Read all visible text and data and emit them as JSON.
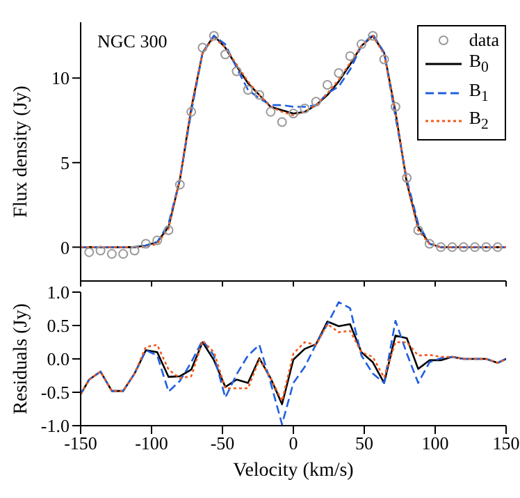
{
  "chart_data": [
    {
      "type": "line",
      "ylabel": "Flux density (Jy)",
      "annotations": [
        "NGC 300"
      ],
      "xlim": [
        -150,
        150
      ],
      "xticks": [
        -150,
        -100,
        -50,
        0,
        50,
        100,
        150
      ],
      "ylim": [
        -2,
        13.3
      ],
      "yticks": [
        0,
        5,
        10
      ],
      "tick_labels": "y",
      "legend": "top right",
      "grid": false,
      "series": [
        {
          "name": "data",
          "type": "scatter",
          "marker": "circle",
          "color": "#999999",
          "x": [
            -144,
            -136,
            -128,
            -120,
            -112,
            -104,
            -96,
            -88,
            -80,
            -72,
            -64,
            -56,
            -48,
            -40,
            -32,
            -24,
            -16,
            -8,
            0,
            8,
            16,
            24,
            32,
            40,
            48,
            56,
            64,
            72,
            80,
            88,
            96,
            104,
            112,
            120,
            128,
            136,
            144
          ],
          "values": [
            -0.3,
            -0.2,
            -0.4,
            -0.4,
            -0.2,
            0.2,
            0.4,
            1.0,
            3.7,
            8.0,
            11.8,
            12.5,
            11.4,
            10.4,
            9.3,
            9.0,
            8.0,
            7.4,
            7.9,
            8.2,
            8.6,
            9.6,
            10.3,
            11.3,
            12.0,
            12.5,
            11.1,
            8.3,
            4.1,
            1.0,
            0.2,
            0.0,
            0.0,
            0.0,
            0.0,
            0.0,
            0.0
          ]
        },
        {
          "name": "B$_{0}$",
          "type": "line",
          "marker": "none",
          "line_style": "solid",
          "color": "#000000",
          "x": [
            -150,
            -144,
            -136,
            -128,
            -120,
            -112,
            -104,
            -96,
            -88,
            -80,
            -72,
            -64,
            -56,
            -48,
            -40,
            -32,
            -24,
            -16,
            -8,
            0,
            8,
            16,
            24,
            32,
            40,
            48,
            56,
            64,
            72,
            80,
            88,
            96,
            104,
            112,
            120,
            128,
            136,
            144,
            150
          ],
          "values": [
            0,
            0,
            0,
            0,
            0,
            0,
            0.1,
            0.3,
            1.2,
            4.0,
            8.2,
            11.5,
            12.5,
            11.8,
            10.7,
            9.7,
            9.0,
            8.3,
            8.1,
            7.9,
            8.0,
            8.4,
            9.0,
            9.8,
            10.8,
            11.9,
            12.5,
            11.5,
            8.0,
            3.8,
            1.2,
            0.2,
            0,
            0,
            0,
            0,
            0,
            0,
            0
          ]
        },
        {
          "name": "B$_{1}$",
          "type": "line",
          "marker": "none",
          "line_style": "dashed",
          "color": "#1f5fe0",
          "x": [
            -150,
            -144,
            -136,
            -128,
            -120,
            -112,
            -104,
            -96,
            -88,
            -80,
            -72,
            -64,
            -56,
            -48,
            -40,
            -32,
            -24,
            -16,
            -8,
            0,
            8,
            16,
            24,
            32,
            40,
            48,
            56,
            64,
            72,
            80,
            88,
            96,
            104,
            112,
            120,
            128,
            136,
            144,
            150
          ],
          "values": [
            0,
            0,
            0,
            0,
            0,
            0,
            0.1,
            0.3,
            1.4,
            4.0,
            8.0,
            11.5,
            12.5,
            12.0,
            10.6,
            9.3,
            8.8,
            8.4,
            8.4,
            8.3,
            8.3,
            8.4,
            9.1,
            9.5,
            10.5,
            11.9,
            12.6,
            11.5,
            7.7,
            4.0,
            1.4,
            0.2,
            0,
            0,
            0,
            0,
            0,
            0,
            0
          ]
        },
        {
          "name": "B$_{2}$",
          "type": "line",
          "marker": "none",
          "line_style": "dotted",
          "color": "#f05a1e",
          "x": [
            -150,
            -144,
            -136,
            -128,
            -120,
            -112,
            -104,
            -96,
            -88,
            -80,
            -72,
            -64,
            -56,
            -48,
            -40,
            -32,
            -24,
            -16,
            -8,
            0,
            8,
            16,
            24,
            32,
            40,
            48,
            56,
            64,
            72,
            80,
            88,
            96,
            104,
            112,
            120,
            128,
            136,
            144,
            150
          ],
          "values": [
            0,
            0,
            0,
            0,
            0,
            0,
            0,
            0.2,
            1.1,
            4.0,
            8.3,
            11.5,
            12.4,
            11.8,
            10.8,
            9.8,
            9.0,
            8.3,
            8.0,
            7.8,
            8.0,
            8.4,
            9.1,
            9.9,
            10.9,
            11.9,
            12.5,
            11.4,
            8.0,
            3.8,
            1.0,
            0.2,
            0,
            0,
            0,
            0,
            0,
            0,
            0
          ]
        }
      ]
    },
    {
      "type": "line",
      "xlabel": "Velocity (km/s)",
      "ylabel": "Residuals (Jy)",
      "xlim": [
        -150,
        150
      ],
      "xticks": [
        -150,
        -100,
        -50,
        0,
        50,
        100,
        150
      ],
      "ylim": [
        -1,
        1
      ],
      "yticks": [
        {
          "value": -1,
          "label": "-1.0"
        },
        {
          "value": -0.5,
          "label": "-0.5"
        },
        {
          "value": 0,
          "label": "0.0"
        },
        {
          "value": 0.5,
          "label": "0.5"
        },
        {
          "value": 1,
          "label": "1.0"
        }
      ],
      "grid": false,
      "series": [
        {
          "type": "line",
          "marker": "none",
          "line_style": "solid",
          "color": "#000000",
          "x": [
            -150,
            -144,
            -136,
            -128,
            -120,
            -112,
            -104,
            -96,
            -88,
            -80,
            -72,
            -64,
            -56,
            -48,
            -40,
            -32,
            -24,
            -16,
            -8,
            0,
            8,
            16,
            24,
            32,
            40,
            48,
            56,
            64,
            72,
            80,
            88,
            96,
            104,
            112,
            120,
            128,
            136,
            144,
            150
          ],
          "values": [
            -0.53,
            -0.31,
            -0.19,
            -0.48,
            -0.48,
            -0.22,
            0.13,
            0.1,
            -0.27,
            -0.26,
            -0.16,
            0.25,
            -0.02,
            -0.42,
            -0.31,
            -0.36,
            0.01,
            -0.29,
            -0.68,
            -0.01,
            0.15,
            0.22,
            0.56,
            0.49,
            0.52,
            0.1,
            -0.05,
            -0.36,
            0.35,
            0.31,
            -0.15,
            -0.02,
            -0.02,
            0.03,
            0,
            0,
            0,
            -0.06,
            0
          ]
        },
        {
          "type": "line",
          "marker": "none",
          "line_style": "dashed",
          "color": "#1f5fe0",
          "x": [
            -150,
            -144,
            -136,
            -128,
            -120,
            -112,
            -104,
            -96,
            -88,
            -80,
            -72,
            -64,
            -56,
            -48,
            -40,
            -32,
            -24,
            -16,
            -8,
            0,
            8,
            16,
            24,
            32,
            40,
            48,
            56,
            64,
            72,
            80,
            88,
            96,
            104,
            112,
            120,
            128,
            136,
            144,
            150
          ],
          "values": [
            -0.53,
            -0.31,
            -0.19,
            -0.48,
            -0.48,
            -0.22,
            0.13,
            0.05,
            -0.49,
            -0.33,
            -0.05,
            0.28,
            0.05,
            -0.58,
            -0.23,
            0.05,
            0.21,
            -0.36,
            -0.98,
            -0.36,
            -0.12,
            0.22,
            0.52,
            0.85,
            0.76,
            0.05,
            -0.22,
            -0.36,
            0.57,
            0.08,
            -0.36,
            -0.05,
            0.01,
            0.03,
            0,
            0,
            0,
            -0.06,
            0
          ]
        },
        {
          "type": "line",
          "marker": "none",
          "line_style": "dotted",
          "color": "#f05a1e",
          "x": [
            -150,
            -144,
            -136,
            -128,
            -120,
            -112,
            -104,
            -96,
            -88,
            -80,
            -72,
            -64,
            -56,
            -48,
            -40,
            -32,
            -24,
            -16,
            -8,
            0,
            8,
            16,
            24,
            32,
            40,
            48,
            56,
            64,
            72,
            80,
            88,
            96,
            104,
            112,
            120,
            128,
            136,
            144,
            150
          ],
          "values": [
            -0.53,
            -0.31,
            -0.19,
            -0.48,
            -0.48,
            -0.22,
            0.18,
            0.21,
            -0.16,
            -0.29,
            -0.26,
            0.27,
            0.1,
            -0.44,
            -0.44,
            -0.44,
            -0.01,
            -0.29,
            -0.63,
            0.08,
            0.25,
            0.21,
            0.52,
            0.4,
            0.42,
            0.1,
            0.03,
            -0.28,
            0.25,
            0.25,
            0.05,
            0.06,
            0.03,
            0.03,
            0,
            0,
            0,
            -0.06,
            0
          ]
        }
      ]
    }
  ]
}
